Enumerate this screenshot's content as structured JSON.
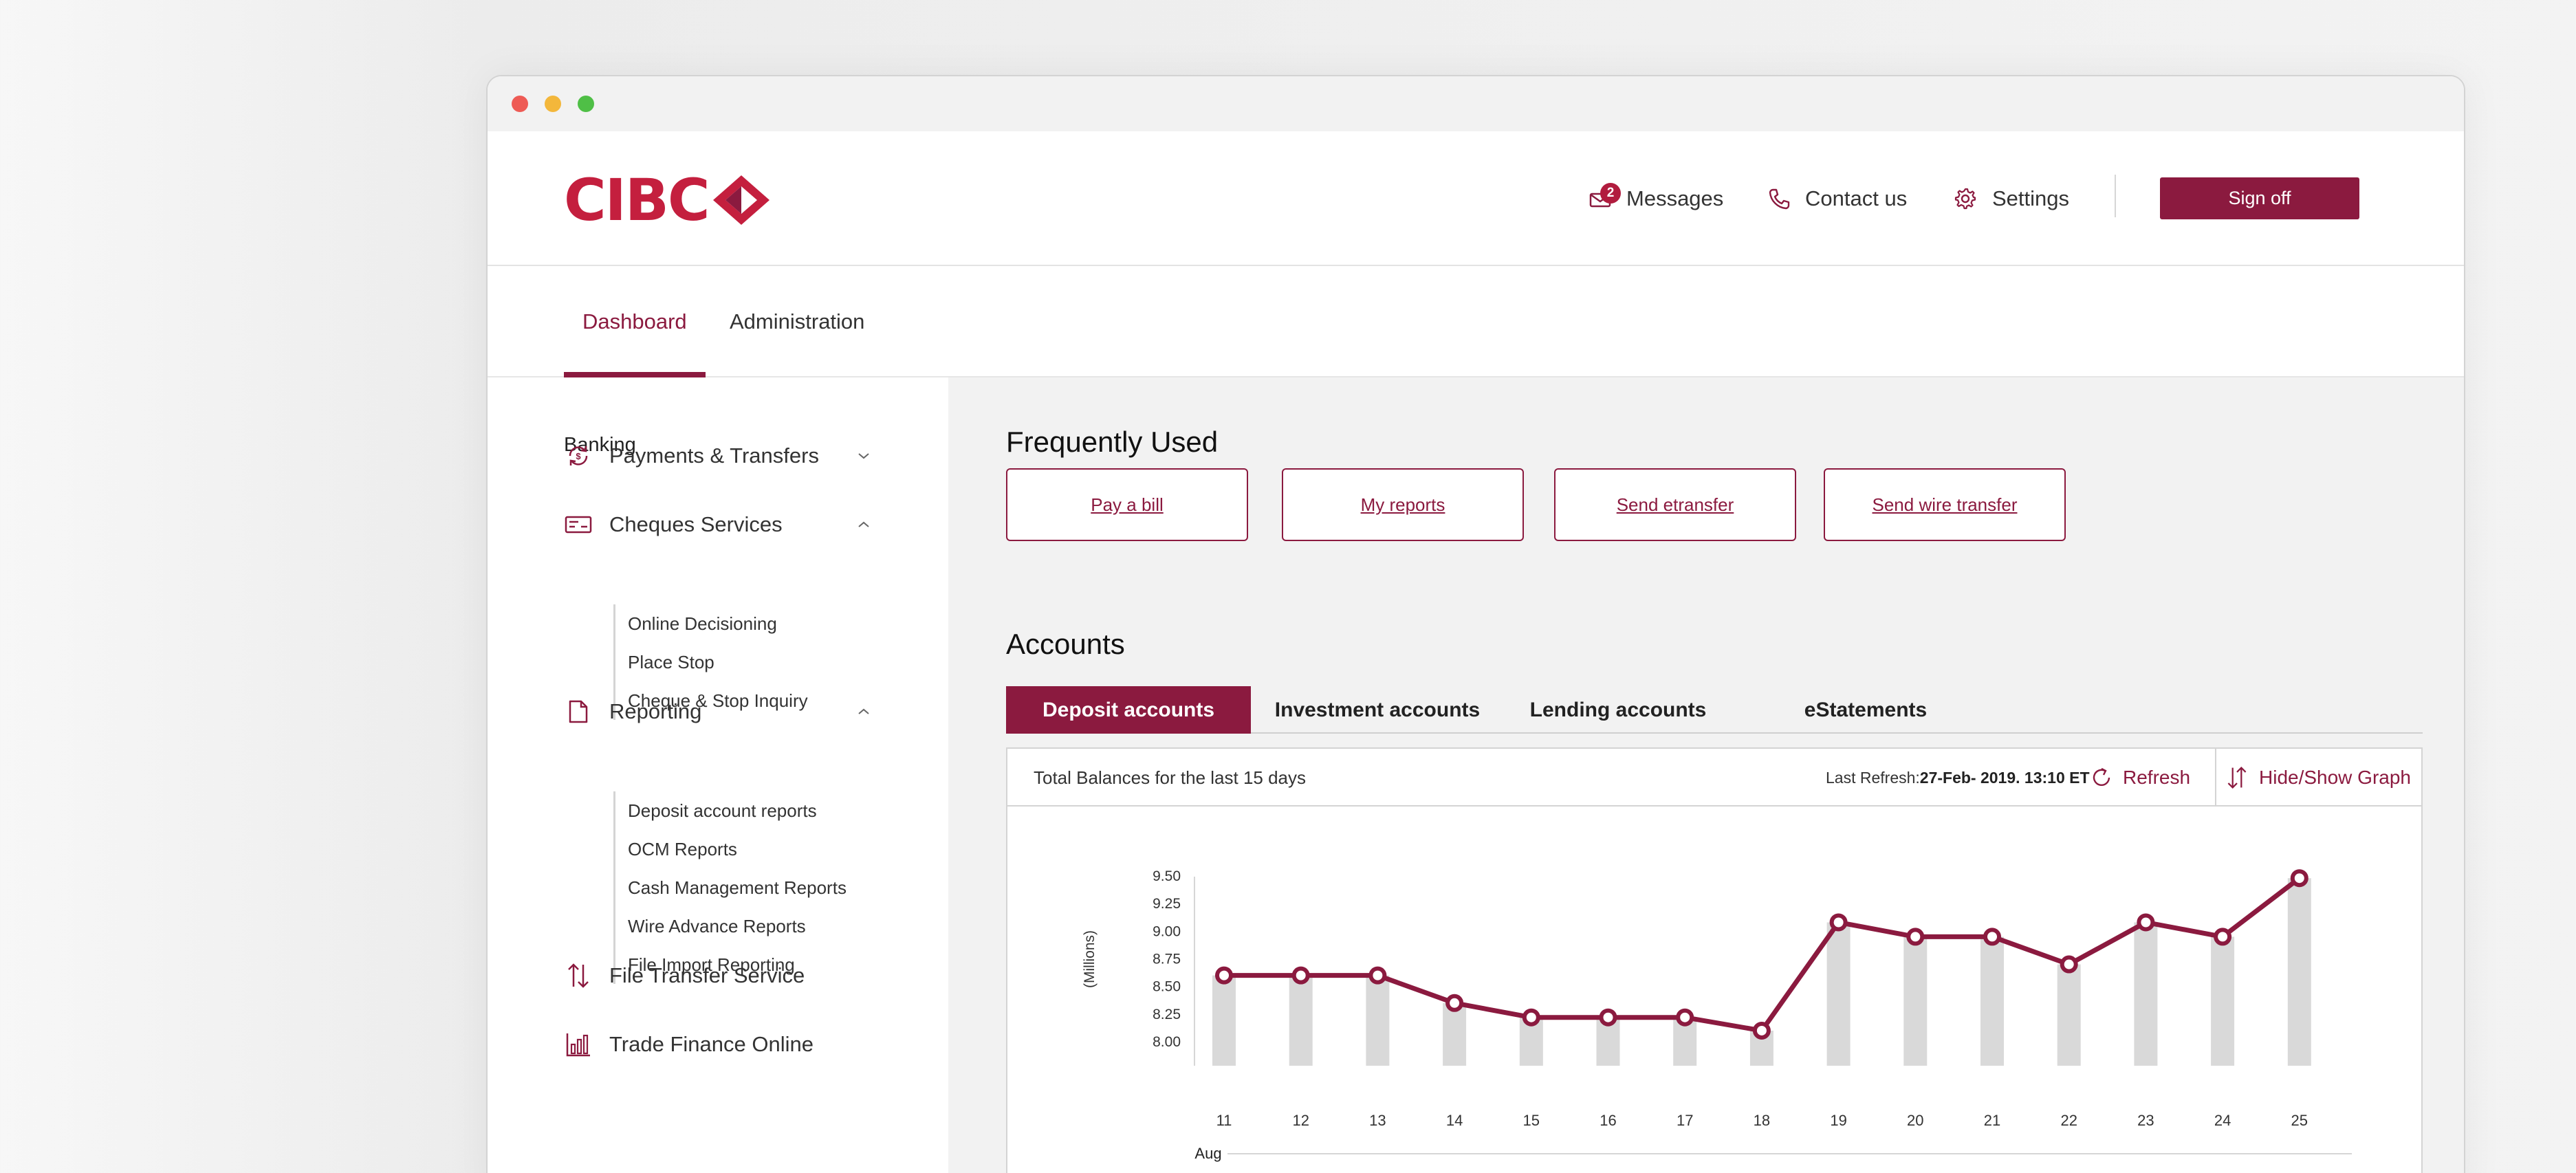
{
  "brand": {
    "name": "CIBC",
    "color": "#8b1a3f",
    "logo_red": "#c41f3e"
  },
  "header": {
    "messages": {
      "label": "Messages",
      "count": "2",
      "icon": "mail-icon"
    },
    "contact": {
      "label": "Contact us",
      "icon": "phone-icon"
    },
    "settings": {
      "label": "Settings",
      "icon": "gear-icon"
    },
    "signoff": "Sign off"
  },
  "tabs": [
    {
      "label": "Dashboard",
      "active": true
    },
    {
      "label": "Administration",
      "active": false
    }
  ],
  "sidebar": {
    "heading": "Banking",
    "payments": {
      "label": "Payments & Transfers",
      "icon": "transfer-cycle-icon",
      "expanded": false
    },
    "cheques": {
      "label": "Cheques Services",
      "icon": "cheque-icon",
      "expanded": true,
      "items": [
        "Online Decisioning",
        "Place Stop",
        "Cheque & Stop Inquiry"
      ]
    },
    "reporting": {
      "label": "Reporting",
      "icon": "document-icon",
      "expanded": true,
      "items": [
        "Deposit account reports",
        "OCM Reports",
        "Cash Management Reports",
        "Wire Advance Reports",
        "File Import Reporting"
      ]
    },
    "file_transfer": {
      "label": "File Transfer Service",
      "icon": "up-down-arrows-icon"
    },
    "trade_finance": {
      "label": "Trade Finance Online",
      "icon": "bar-chart-icon"
    }
  },
  "frequently_used": {
    "title": "Frequently Used",
    "links": [
      "Pay a bill",
      "My reports",
      "Send etransfer",
      "Send wire transfer"
    ]
  },
  "accounts": {
    "title": "Accounts",
    "tabs": [
      "Deposit accounts",
      "Investment accounts",
      "Lending accounts",
      "eStatements"
    ],
    "active_tab": 0,
    "panel": {
      "title": "Total Balances for the last 15 days",
      "last_refresh_label": "Last Refresh:",
      "last_refresh_value": "27-Feb- 2019. 13:10 ET",
      "refresh": "Refresh",
      "toggle": "Hide/Show Graph"
    }
  },
  "chart_data": {
    "type": "line",
    "x": [
      11,
      12,
      13,
      14,
      15,
      16,
      17,
      18,
      19,
      20,
      21,
      22,
      23,
      24,
      25
    ],
    "x_tick_labels": [
      "11",
      "12",
      "13",
      "14",
      "15",
      "16",
      "17",
      "18",
      "19",
      "20",
      "21",
      "22",
      "23",
      "24",
      "25"
    ],
    "x_group_label": "Aug",
    "series": [
      {
        "values": [
          8.6,
          8.6,
          8.6,
          8.35,
          8.22,
          8.22,
          8.22,
          8.1,
          9.08,
          8.95,
          8.95,
          8.7,
          9.08,
          8.95,
          9.48
        ]
      }
    ],
    "ylabel": "(Millions)",
    "y_ticks": [
      "9.50",
      "9.25",
      "9.00",
      "8.75",
      "8.50",
      "8.25",
      "8.00"
    ],
    "ylim": [
      8.0,
      9.5
    ],
    "line_color": "#8b1a3f",
    "bar_color": "#d9d9d9",
    "grid": false
  }
}
